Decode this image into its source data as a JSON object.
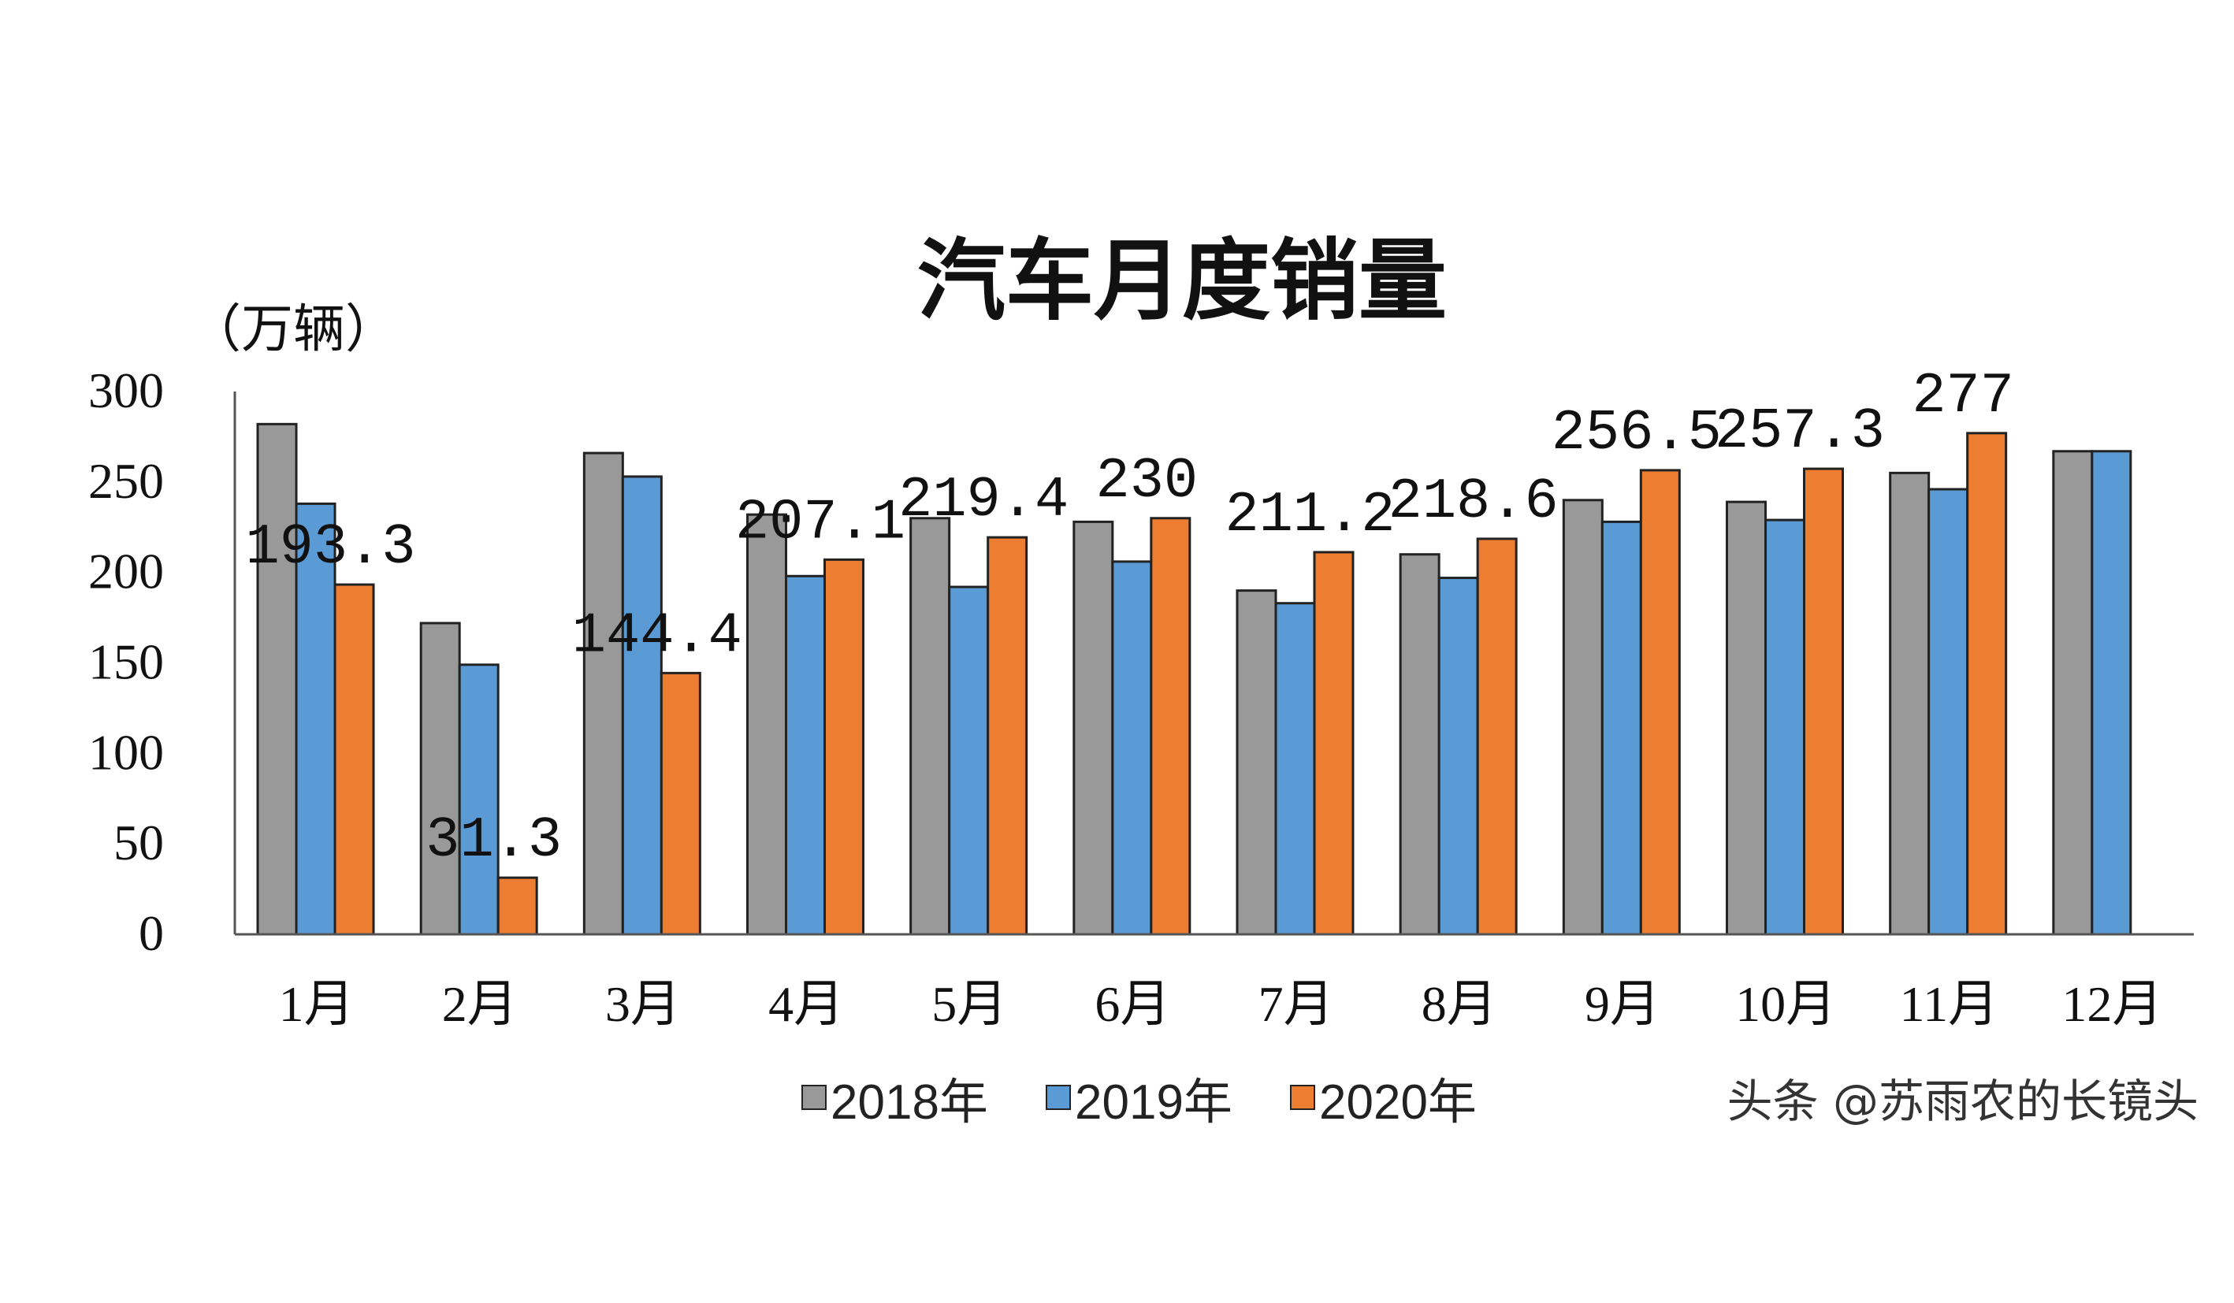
{
  "chart_data": {
    "type": "bar",
    "title": "汽车月度销量",
    "ylabel": "（万辆）",
    "xlabel": "",
    "ylim": [
      0,
      300
    ],
    "yticks": [
      0,
      50,
      100,
      150,
      200,
      250,
      300
    ],
    "grid": false,
    "legend_position": "bottom",
    "categories": [
      "1月",
      "2月",
      "3月",
      "4月",
      "5月",
      "6月",
      "7月",
      "8月",
      "9月",
      "10月",
      "11月",
      "12月"
    ],
    "series": [
      {
        "name": "2018年",
        "color": "#999999",
        "values": [
          282,
          172,
          266,
          232,
          230,
          228,
          190,
          210,
          240,
          239,
          255,
          267
        ]
      },
      {
        "name": "2019年",
        "color": "#5b9bd5",
        "values": [
          238,
          149,
          253,
          198,
          192,
          206,
          183,
          197,
          228,
          229,
          246,
          267
        ]
      },
      {
        "name": "2020年",
        "color": "#ed7d31",
        "values": [
          193.3,
          31.3,
          144.4,
          207.1,
          219.4,
          230,
          211.2,
          218.6,
          256.5,
          257.3,
          277,
          null
        ],
        "data_labels": [
          "193.3",
          "31.3",
          "144.4",
          "207.1",
          "219.4",
          "230",
          "211.2",
          "218.6",
          "256.5",
          "257.3",
          "277",
          ""
        ]
      }
    ]
  },
  "watermark": "头条 @苏雨农的长镜头"
}
